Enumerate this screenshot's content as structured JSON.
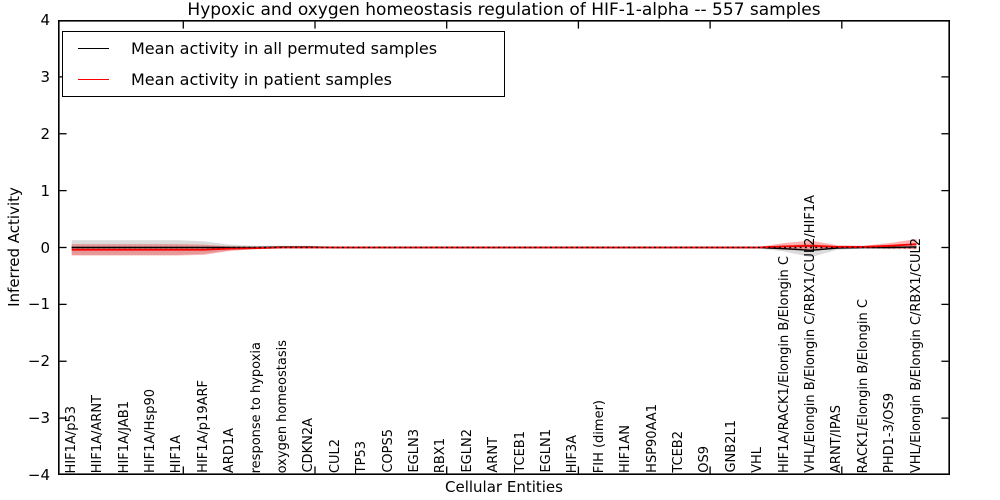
{
  "title": "Hypoxic and oxygen homeostasis regulation of HIF-1-alpha -- 557 samples",
  "axes": {
    "xlabel": "Cellular Entities",
    "ylabel": "Inferred Activity",
    "ylim": [
      -4,
      4
    ],
    "yticks": [
      {
        "value": 4,
        "label": "4"
      },
      {
        "value": 3,
        "label": "3"
      },
      {
        "value": 2,
        "label": "2"
      },
      {
        "value": 1,
        "label": "1"
      },
      {
        "value": 0,
        "label": "0"
      },
      {
        "value": -1,
        "label": "−1"
      },
      {
        "value": -2,
        "label": "−2"
      },
      {
        "value": -3,
        "label": "−3"
      },
      {
        "value": -4,
        "label": "−4"
      }
    ]
  },
  "legend": {
    "entries": [
      {
        "label": "Mean activity in all permuted samples",
        "color": "#000000"
      },
      {
        "label": "Mean activity in patient samples",
        "color": "#ff0000"
      }
    ]
  },
  "colors": {
    "permuted_line": "#000000",
    "patient_line": "#ff0000",
    "permuted_band": "rgba(0,0,0,0.14)",
    "patient_band": "rgba(255,0,0,0.30)",
    "zero_line": "#000000"
  },
  "chart_data": {
    "type": "line",
    "title": "Hypoxic and oxygen homeostasis regulation of HIF-1-alpha -- 557 samples",
    "xlabel": "Cellular Entities",
    "ylabel": "Inferred Activity",
    "ylim": [
      -4,
      4
    ],
    "grid": false,
    "legend_position": "upper left",
    "categories": [
      "HIF1A/p53",
      "HIF1A/ARNT",
      "HIF1A/JAB1",
      "HIF1A/Hsp90",
      "HIF1A",
      "HIF1A/p19ARF",
      "ARD1A",
      "response to hypoxia",
      "oxygen homeostasis",
      "CDKN2A",
      "CUL2",
      "TP53",
      "COPS5",
      "EGLN3",
      "RBX1",
      "EGLN2",
      "ARNT",
      "TCEB1",
      "EGLN1",
      "HIF3A",
      "FIH (dimer)",
      "HIF1AN",
      "HSP90AA1",
      "TCEB2",
      "OS9",
      "GNB2L1",
      "VHL",
      "HIF1A/RACK1/Elongin B/Elongin C",
      "VHL/Elongin B/Elongin C/RBX1/CUL2/HIF1A",
      "ARNT/IPAS",
      "RACK1/Elongin B/Elongin C",
      "PHD1-3/OS9",
      "VHL/Elongin B/Elongin C/RBX1/CUL2"
    ],
    "series": [
      {
        "name": "Mean activity in all permuted samples",
        "color": "#000000",
        "style": "solid",
        "values": [
          0,
          0,
          0,
          0,
          0,
          0,
          0,
          0,
          0.01,
          0.01,
          0,
          0,
          0,
          0,
          0,
          0,
          0,
          0,
          0,
          0,
          0,
          0,
          0,
          0,
          0,
          0,
          0,
          -0.02,
          -0.05,
          -0.01,
          0,
          0,
          0.01
        ],
        "band_halfwidth": [
          0.13,
          0.13,
          0.13,
          0.13,
          0.13,
          0.11,
          0.05,
          0.03,
          0.02,
          0.02,
          0.015,
          0.015,
          0.015,
          0.015,
          0.015,
          0.015,
          0.015,
          0.015,
          0.015,
          0.015,
          0.015,
          0.015,
          0.015,
          0.015,
          0.015,
          0.015,
          0.015,
          0.05,
          0.12,
          0.03,
          0.02,
          0.03,
          0.04
        ]
      },
      {
        "name": "Mean activity in patient samples",
        "color": "#ff0000",
        "style": "solid",
        "values": [
          -0.04,
          -0.04,
          -0.04,
          -0.04,
          -0.04,
          -0.04,
          -0.02,
          -0.01,
          0,
          0,
          0,
          0,
          0,
          0,
          0,
          0,
          0,
          0,
          0,
          0,
          0,
          0,
          0,
          0,
          0,
          0,
          0,
          0.02,
          0.03,
          0.01,
          0.01,
          0.03,
          0.06
        ],
        "band_halfwidth": [
          0.1,
          0.1,
          0.1,
          0.1,
          0.1,
          0.09,
          0.04,
          0.02,
          0.012,
          0.012,
          0.01,
          0.01,
          0.01,
          0.01,
          0.01,
          0.01,
          0.01,
          0.01,
          0.01,
          0.01,
          0.01,
          0.01,
          0.01,
          0.01,
          0.01,
          0.01,
          0.01,
          0.06,
          0.09,
          0.03,
          0.02,
          0.05,
          0.09
        ]
      },
      {
        "name": "zero reference",
        "color": "#000000",
        "style": "dotted",
        "values": [
          0,
          0,
          0,
          0,
          0,
          0,
          0,
          0,
          0,
          0,
          0,
          0,
          0,
          0,
          0,
          0,
          0,
          0,
          0,
          0,
          0,
          0,
          0,
          0,
          0,
          0,
          0,
          0,
          0,
          0,
          0,
          0,
          0
        ]
      }
    ]
  }
}
